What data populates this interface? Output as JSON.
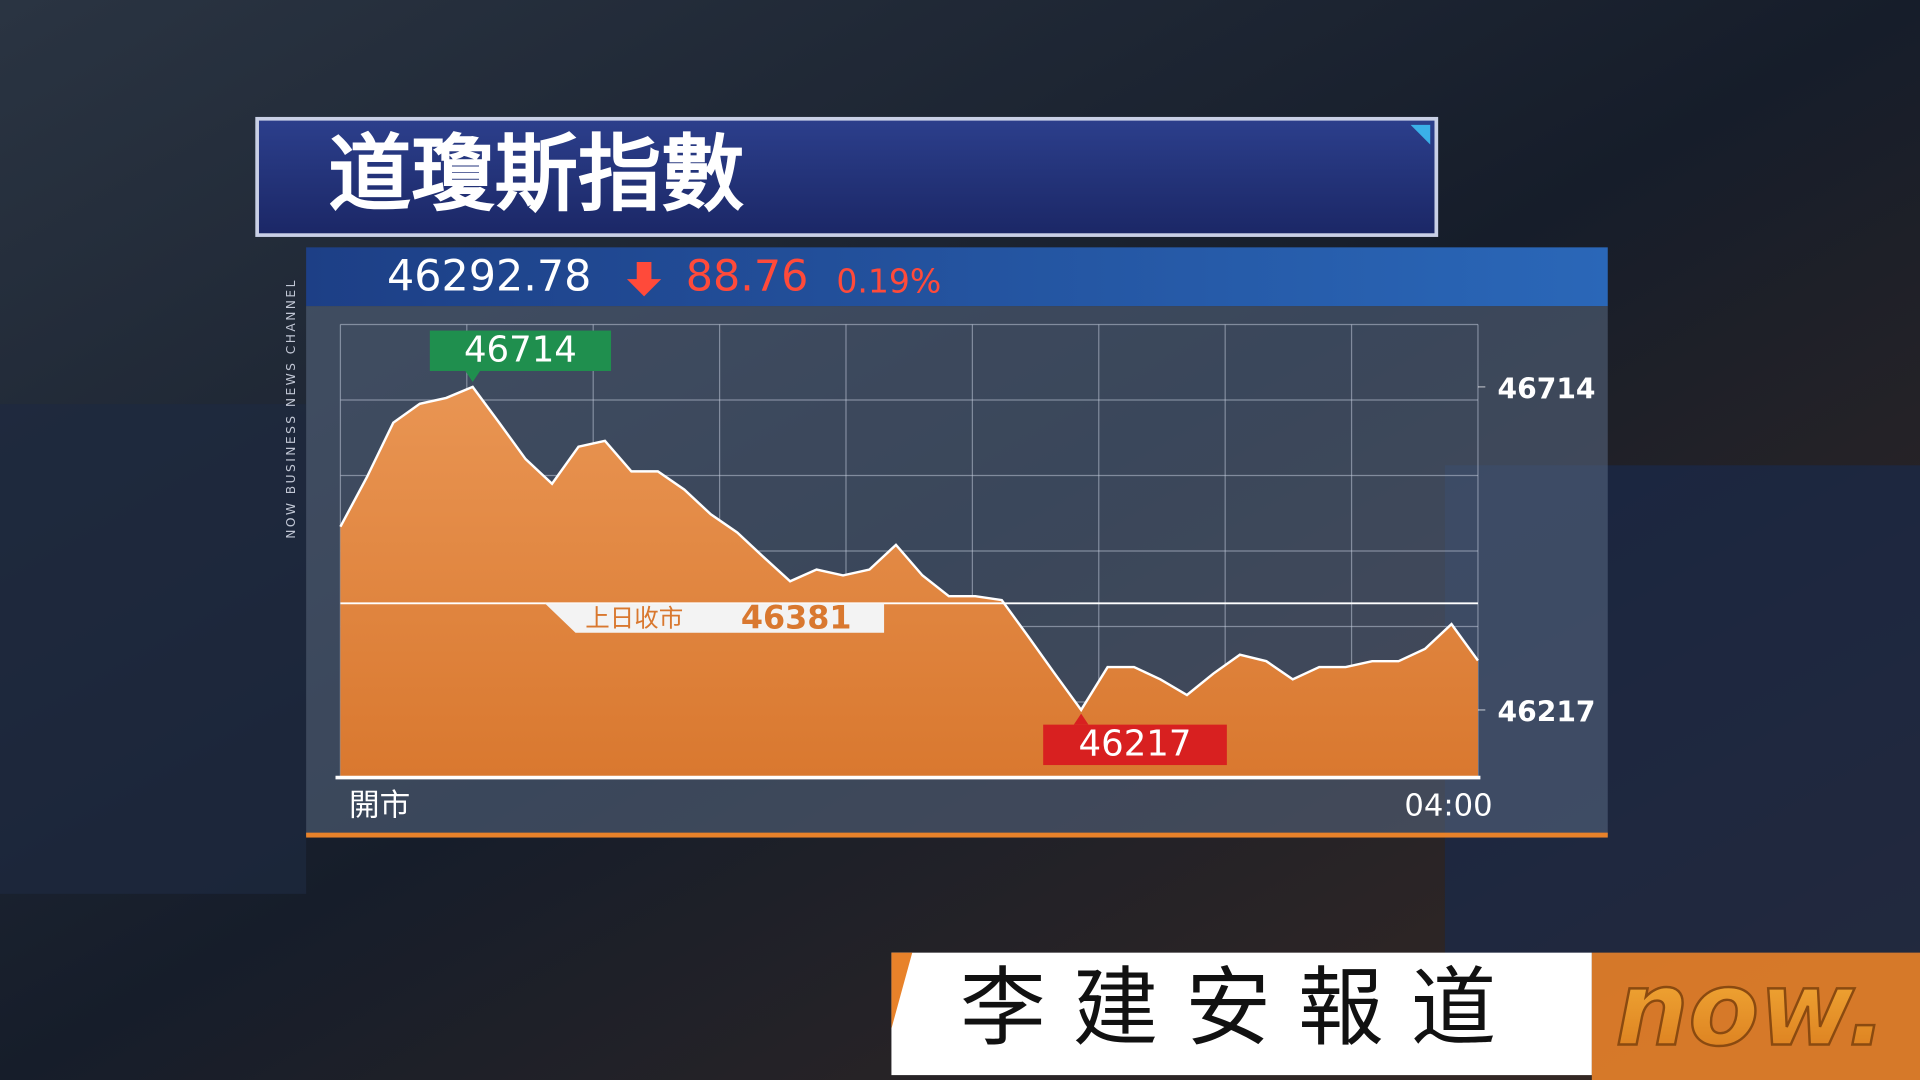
{
  "header": {
    "title": "道瓊斯指數",
    "channel": "NOW BUSINESS NEWS CHANNEL",
    "price": "46292.78",
    "change": "88.76",
    "change_pct": "0.19%"
  },
  "chart_data": {
    "type": "area",
    "categories": [
      "開市",
      null,
      null,
      null,
      null,
      null,
      null,
      null,
      null,
      null,
      null,
      null,
      null,
      null,
      null,
      null,
      null,
      null,
      null,
      null,
      null,
      null,
      null,
      null,
      null,
      null,
      null,
      null,
      null,
      null,
      null,
      null,
      null,
      null,
      null,
      null,
      null,
      null,
      null,
      null,
      null,
      null,
      null,
      "04:00"
    ],
    "values": [
      46499,
      46575,
      46659,
      46688,
      46697,
      46714,
      46659,
      46603,
      46565,
      46622,
      46631,
      46584,
      46584,
      46556,
      46518,
      46490,
      46452,
      46415,
      46433,
      46424,
      46433,
      46471,
      46424,
      46392,
      46392,
      46386,
      46330,
      46273,
      46217,
      46283,
      46283,
      46264,
      46240,
      46273,
      46302,
      46292,
      46264,
      46283,
      46283,
      46292,
      46292,
      46311,
      46349,
      46293
    ],
    "color": "#e8914b",
    "ylim": [
      46113,
      46810
    ],
    "yticks": [
      46714,
      46217
    ],
    "high": 46714,
    "low": 46217,
    "prev_close_label": "上日收市",
    "prev_close": 46381
  },
  "footer": {
    "reporter": "李建安報道",
    "logo": "now."
  }
}
